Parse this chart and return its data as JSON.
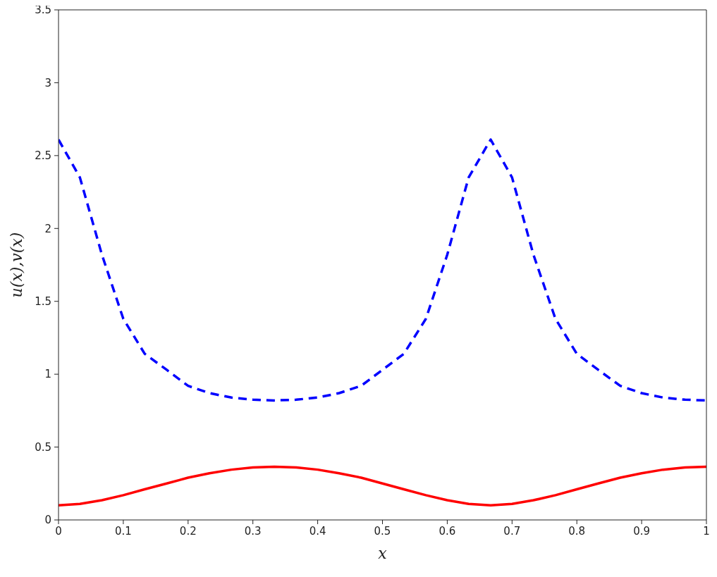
{
  "chart_data": {
    "type": "line",
    "xlabel": "x",
    "ylabel": "u(x),v(x)",
    "x": [
      0,
      0.033,
      0.067,
      0.1,
      0.133,
      0.167,
      0.2,
      0.233,
      0.267,
      0.3,
      0.333,
      0.367,
      0.4,
      0.433,
      0.467,
      0.5,
      0.533,
      0.567,
      0.6,
      0.633,
      0.667,
      0.7,
      0.733,
      0.767,
      0.8,
      0.833,
      0.867,
      0.9,
      0.933,
      0.967,
      1
    ],
    "series": [
      {
        "color": "#0000ff",
        "line_style": "dashed",
        "values": [
          2.61,
          2.35,
          1.82,
          1.38,
          1.14,
          1.03,
          0.92,
          0.87,
          0.84,
          0.825,
          0.82,
          0.825,
          0.84,
          0.87,
          0.92,
          1.03,
          1.14,
          1.38,
          1.82,
          2.35,
          2.61,
          2.35,
          1.82,
          1.38,
          1.14,
          1.03,
          0.92,
          0.87,
          0.84,
          0.825,
          0.82
        ]
      },
      {
        "color": "#ff0000",
        "line_style": "solid",
        "values": [
          0.1,
          0.11,
          0.135,
          0.17,
          0.21,
          0.25,
          0.29,
          0.32,
          0.345,
          0.36,
          0.365,
          0.36,
          0.345,
          0.32,
          0.29,
          0.25,
          0.21,
          0.17,
          0.135,
          0.11,
          0.1,
          0.11,
          0.135,
          0.17,
          0.21,
          0.25,
          0.29,
          0.32,
          0.345,
          0.36,
          0.365
        ]
      }
    ],
    "xlim": [
      0,
      1
    ],
    "xticks": [
      0,
      0.1,
      0.2,
      0.3,
      0.4,
      0.5,
      0.6,
      0.7,
      0.8,
      0.9,
      1
    ],
    "ylim": [
      0,
      3.5
    ],
    "yticks": [
      0,
      0.5,
      1,
      1.5,
      2,
      2.5,
      3,
      3.5
    ],
    "grid": false,
    "legend": false,
    "marker": "none"
  }
}
